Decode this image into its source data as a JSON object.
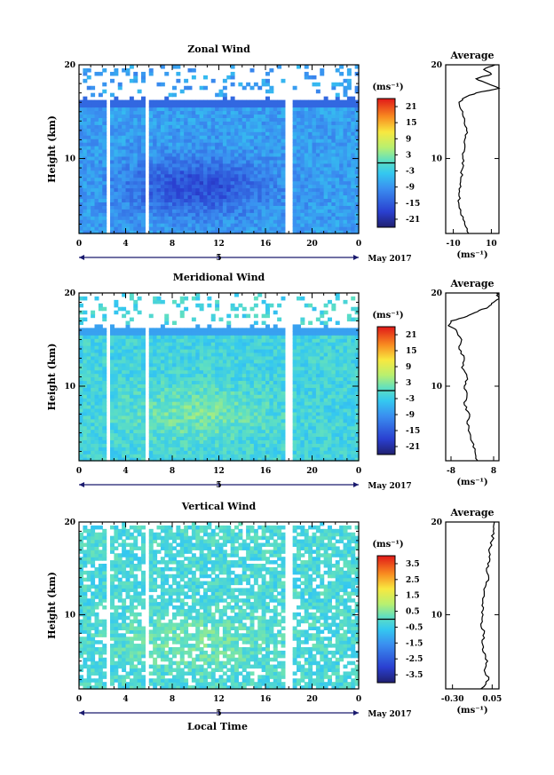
{
  "figure": {
    "xlabel": "Local Time",
    "date_label": "May 2017",
    "day_marker": "5",
    "cbar_unit": "(ms⁻¹)",
    "avg_unit": "(ms⁻¹)"
  },
  "chart_data": [
    {
      "type": "heatmap",
      "title": "Zonal Wind",
      "ylabel": "Height (km)",
      "x_ticks": [
        "0",
        "4",
        "8",
        "12",
        "16",
        "20",
        "0"
      ],
      "xlim_hours": [
        0,
        24
      ],
      "y_ticks": [
        "20",
        "10"
      ],
      "ylim_km": [
        2,
        20
      ],
      "colorbar_ticks": [
        "21",
        "15",
        "9",
        "3",
        "-3",
        "-9",
        "-15",
        "-21"
      ],
      "colorbar_range": [
        -24,
        24
      ],
      "data_gaps_hours": [
        [
          2.2,
          2.6
        ],
        [
          5.6,
          6.0
        ],
        [
          17.8,
          18.3
        ]
      ],
      "approx_field": {
        "upper_km": 16.3,
        "top_sparse_km": 19.5,
        "typical_value": -8,
        "core_value": -17
      },
      "average": {
        "title": "Average",
        "x_ticks": [
          "-10",
          "10"
        ],
        "xlim": [
          -14,
          14
        ],
        "height_km": [
          2,
          3,
          4,
          5,
          6,
          7,
          8,
          9,
          10,
          11,
          12,
          13,
          14,
          15,
          16,
          16.5,
          17,
          17.5,
          18,
          18.5,
          19,
          19.5,
          20
        ],
        "values": [
          -2,
          -4,
          -6,
          -7,
          -7,
          -6,
          -6,
          -5,
          -5,
          -4,
          -4,
          -3,
          -4,
          -5,
          -7,
          -4,
          2,
          14,
          8,
          2,
          10,
          6,
          12
        ]
      }
    },
    {
      "type": "heatmap",
      "title": "Meridional Wind",
      "ylabel": "Height (km)",
      "x_ticks": [
        "0",
        "4",
        "8",
        "12",
        "16",
        "20",
        "0"
      ],
      "xlim_hours": [
        0,
        24
      ],
      "y_ticks": [
        "20",
        "10"
      ],
      "ylim_km": [
        2,
        20
      ],
      "colorbar_ticks": [
        "21",
        "15",
        "9",
        "3",
        "-3",
        "-9",
        "-15",
        "-21"
      ],
      "colorbar_range": [
        -24,
        24
      ],
      "data_gaps_hours": [
        [
          2.2,
          2.6
        ],
        [
          5.6,
          6.0
        ],
        [
          17.8,
          18.3
        ]
      ],
      "approx_field": {
        "upper_km": 16.3,
        "top_sparse_km": 19.5,
        "typical_value": -2,
        "core_value": 2
      },
      "average": {
        "title": "Average",
        "x_ticks": [
          "-8",
          "8"
        ],
        "xlim": [
          -10,
          10
        ],
        "height_km": [
          2,
          3,
          4,
          5,
          6,
          7,
          8,
          9,
          10,
          11,
          12,
          13,
          14,
          15,
          16,
          16.5,
          17,
          17.5,
          18,
          18.5,
          19,
          19.5,
          20
        ],
        "values": [
          2,
          1,
          0,
          -1,
          -2,
          -1,
          -3,
          -2,
          -3,
          -2,
          -4,
          -3,
          -5,
          -4,
          -6,
          -9,
          -8,
          -2,
          2,
          6,
          8,
          10,
          9
        ]
      }
    },
    {
      "type": "heatmap",
      "title": "Vertical Wind",
      "ylabel": "Height (km)",
      "x_ticks": [
        "0",
        "4",
        "8",
        "12",
        "16",
        "20",
        "0"
      ],
      "xlim_hours": [
        0,
        24
      ],
      "y_ticks": [
        "20",
        "10"
      ],
      "ylim_km": [
        2,
        20
      ],
      "colorbar_ticks": [
        "3.5",
        "2.5",
        "1.5",
        "0.5",
        "-0.5",
        "-1.5",
        "-2.5",
        "-3.5"
      ],
      "colorbar_range": [
        -4,
        4
      ],
      "data_gaps_hours": [
        [
          2.2,
          2.6
        ],
        [
          5.6,
          6.0
        ],
        [
          17.8,
          18.3
        ]
      ],
      "approx_field": {
        "upper_km": 19.5,
        "top_sparse_km": 19.8,
        "typical_value": -0.2,
        "core_value": 0.3
      },
      "average": {
        "title": "Average",
        "x_ticks": [
          "-0.30",
          "0.05"
        ],
        "xlim": [
          -0.36,
          0.11
        ],
        "height_km": [
          2,
          3,
          4,
          5,
          6,
          7,
          8,
          9,
          10,
          11,
          12,
          13,
          14,
          15,
          16,
          17,
          18,
          19,
          20
        ],
        "values": [
          -0.05,
          0.02,
          -0.02,
          0.01,
          -0.03,
          -0.04,
          -0.02,
          -0.05,
          -0.03,
          -0.04,
          -0.02,
          -0.01,
          0.02,
          0.0,
          0.03,
          0.02,
          0.05,
          0.06,
          0.07
        ]
      }
    }
  ]
}
